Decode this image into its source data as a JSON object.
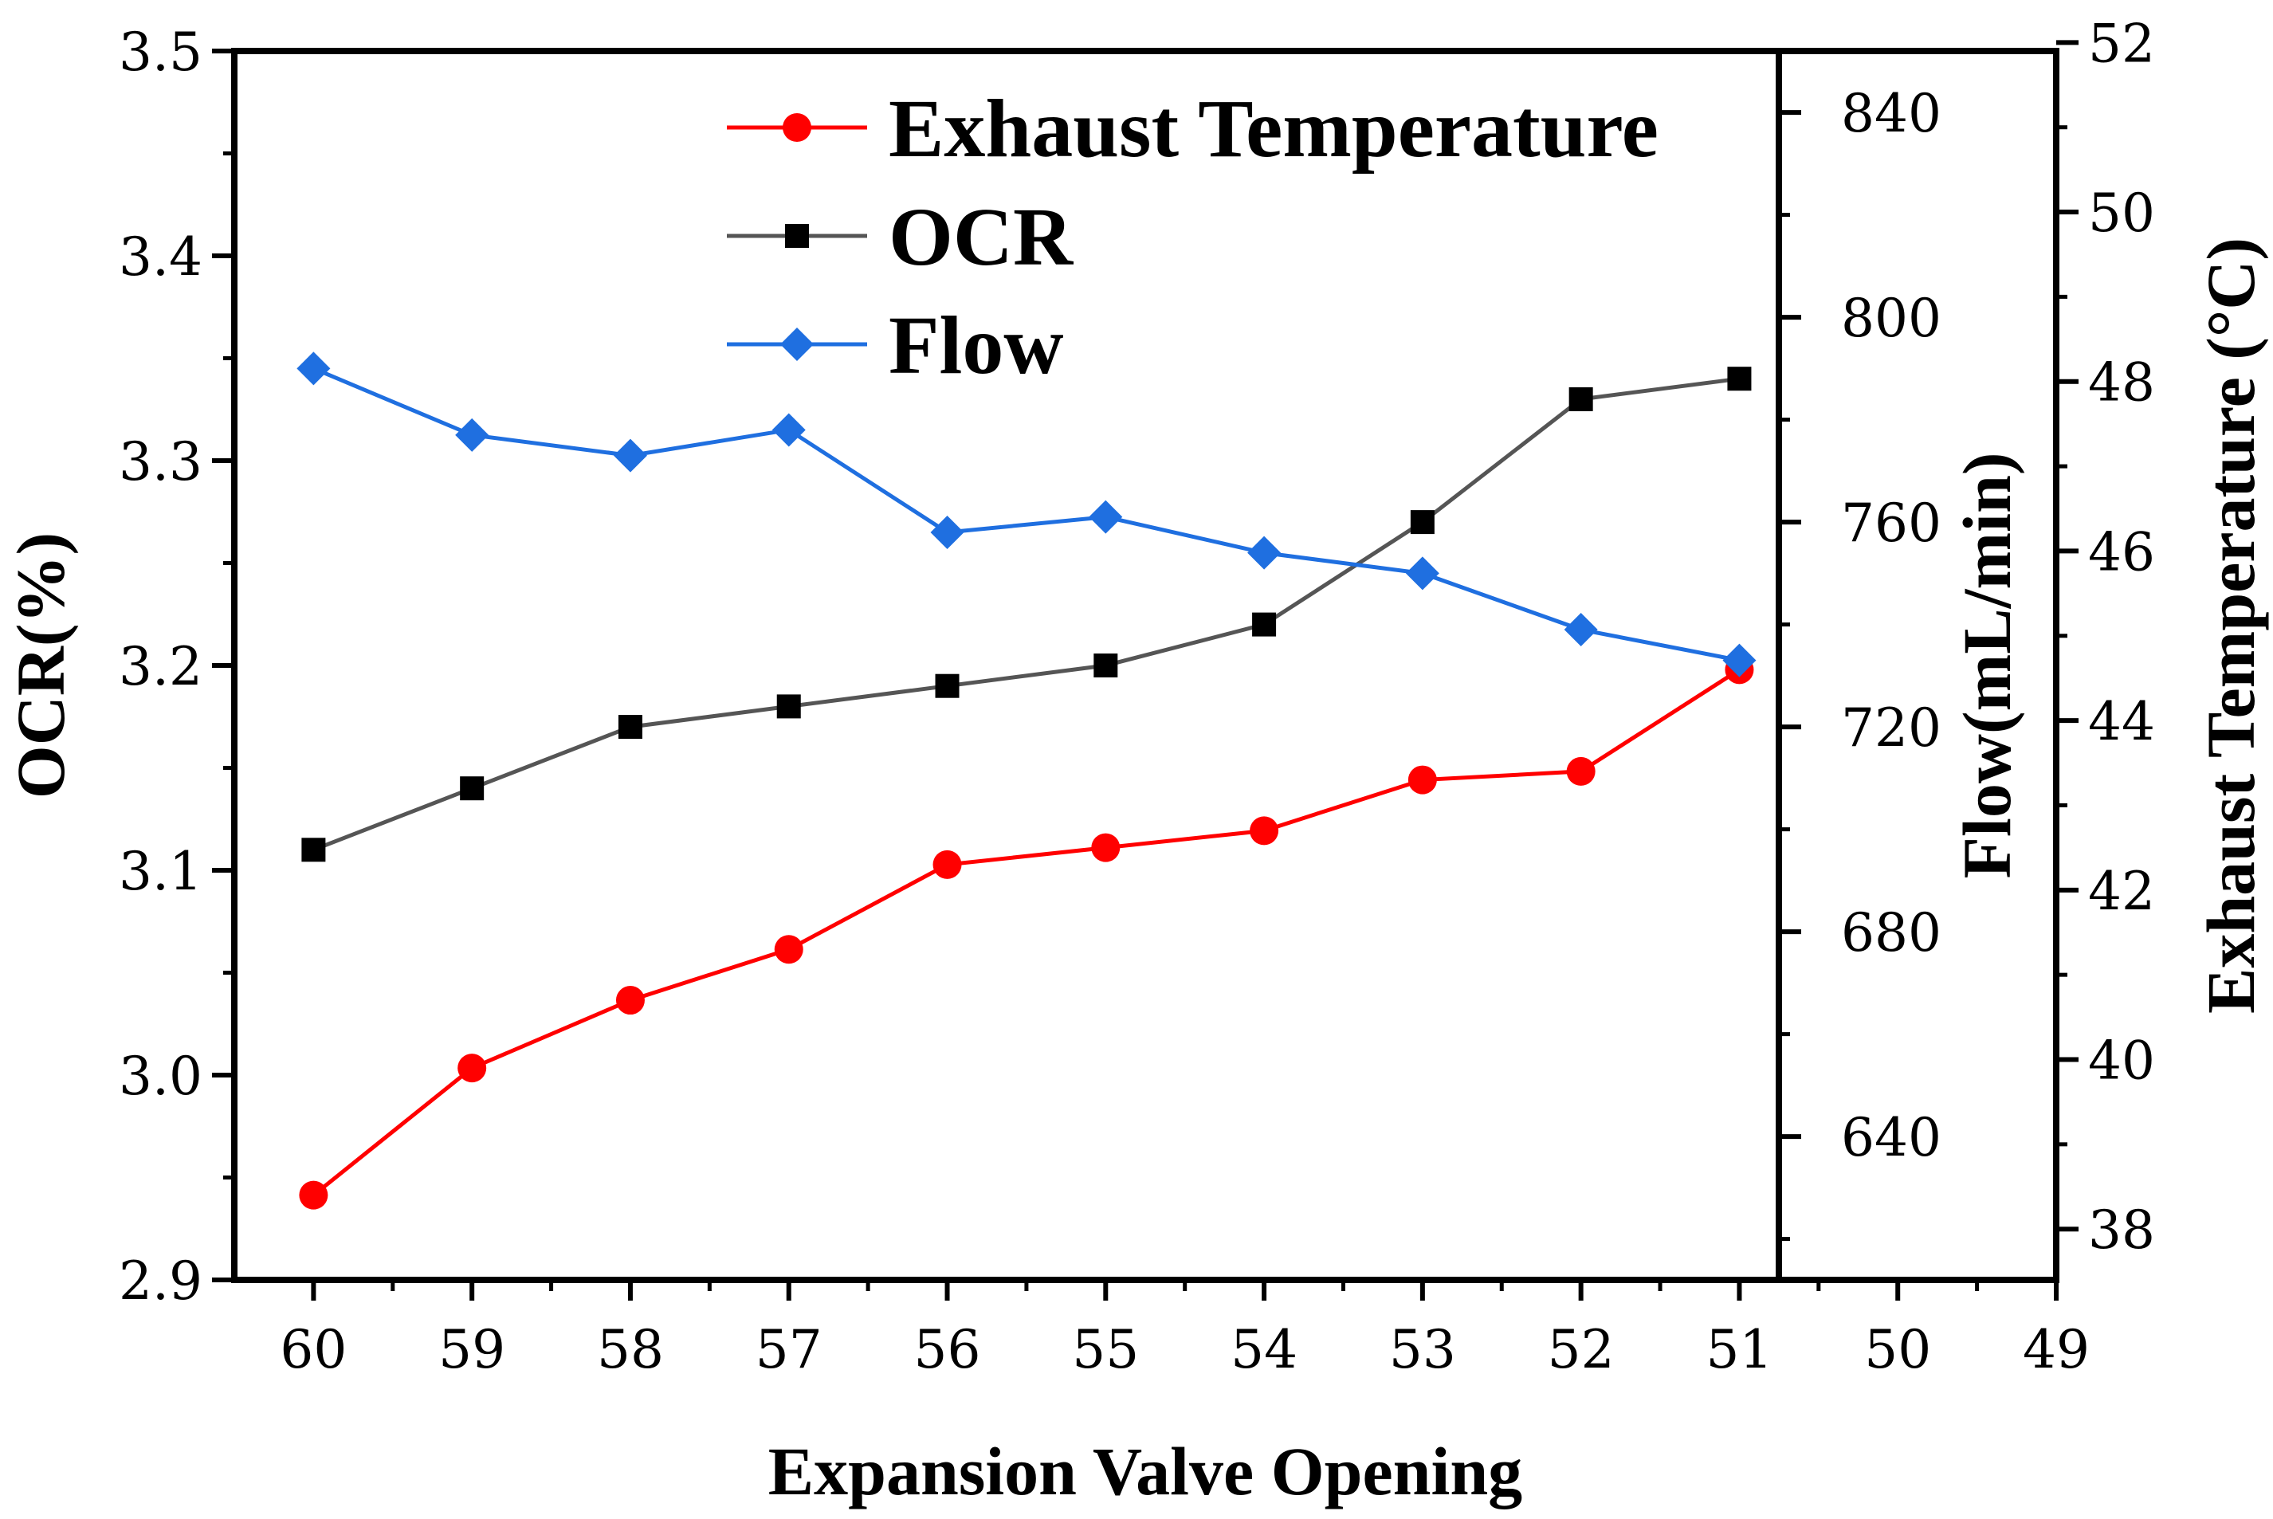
{
  "chart_data": {
    "type": "line",
    "xlabel": "Expansion Valve Opening",
    "x_ticks": [
      "60",
      "59",
      "58",
      "57",
      "56",
      "55",
      "54",
      "53",
      "52",
      "51",
      "50",
      "49"
    ],
    "x": [
      60,
      59,
      58,
      57,
      56,
      55,
      54,
      53,
      52,
      51
    ],
    "xlim": [
      60.5,
      49
    ],
    "axes": {
      "left": {
        "label": "OCR(%)",
        "ylim": [
          2.9,
          3.5
        ],
        "ticks": [
          "2.9",
          "3.0",
          "3.1",
          "3.2",
          "3.3",
          "3.4",
          "3.5"
        ]
      },
      "right_inner": {
        "label": "Flow(mL/min)",
        "ylim": [
          612,
          852
        ],
        "ticks": [
          "640",
          "680",
          "720",
          "760",
          "800",
          "840"
        ]
      },
      "right_outer": {
        "label": "Exhaust Temperature (°C)",
        "ylim": [
          37.4,
          51.9
        ],
        "ticks": [
          "38",
          "40",
          "42",
          "44",
          "46",
          "48",
          "50",
          "52"
        ]
      }
    },
    "series": [
      {
        "name": "Exhaust Temperature",
        "axis": "right_outer",
        "color": "#ff0000",
        "marker": "circle",
        "values": [
          38.4,
          39.9,
          40.7,
          41.3,
          42.3,
          42.5,
          42.7,
          43.3,
          43.4,
          44.6
        ]
      },
      {
        "name": "OCR",
        "axis": "left",
        "color": "#000000",
        "line_color": "#555555",
        "marker": "square",
        "values": [
          3.11,
          3.14,
          3.17,
          3.18,
          3.19,
          3.2,
          3.22,
          3.27,
          3.33,
          3.34
        ]
      },
      {
        "name": "Flow",
        "axis": "right_inner",
        "color": "#1f6fe0",
        "marker": "diamond",
        "values": [
          790,
          777,
          773,
          778,
          758,
          761,
          754,
          750,
          739,
          733
        ]
      }
    ],
    "legend": {
      "position": "top-center",
      "entries": [
        "Exhaust Temperature",
        "OCR",
        "Flow"
      ]
    }
  }
}
